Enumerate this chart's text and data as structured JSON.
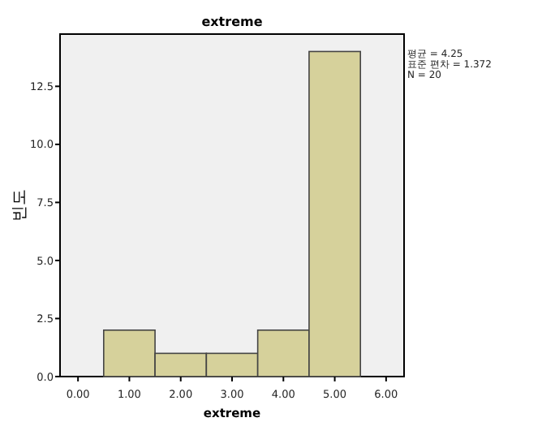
{
  "chart_data": {
    "type": "histogram",
    "title": "extreme",
    "xlabel": "extreme",
    "ylabel": "빈도",
    "bins": [
      0.5,
      1.5,
      2.5,
      3.5,
      4.5,
      5.5
    ],
    "values": [
      2,
      1,
      1,
      2,
      14
    ],
    "color": "#d6d19b",
    "xlim": [
      -0.35,
      6.35
    ],
    "ylim": [
      0,
      14.75
    ],
    "xticks": [
      {
        "value": 0,
        "label": "0.00"
      },
      {
        "value": 1,
        "label": "1.00"
      },
      {
        "value": 2,
        "label": "2.00"
      },
      {
        "value": 3,
        "label": "3.00"
      },
      {
        "value": 4,
        "label": "4.00"
      },
      {
        "value": 5,
        "label": "5.00"
      },
      {
        "value": 6,
        "label": "6.00"
      }
    ],
    "yticks": [
      {
        "value": 0,
        "label": "0.0"
      },
      {
        "value": 2.5,
        "label": "2.5"
      },
      {
        "value": 5,
        "label": "5.0"
      },
      {
        "value": 7.5,
        "label": "7.5"
      },
      {
        "value": 10,
        "label": "10.0"
      },
      {
        "value": 12.5,
        "label": "12.5"
      }
    ],
    "annotations": [
      "평균 = 4.25",
      "표준 편차 = 1.372",
      "N = 20"
    ]
  }
}
